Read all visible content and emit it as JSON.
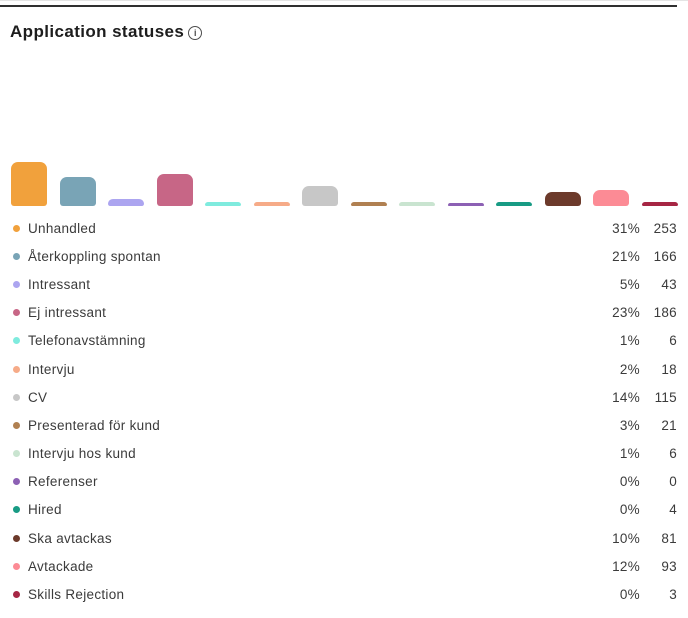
{
  "header": {
    "title": "Application statuses",
    "info_icon_glyph": "i"
  },
  "legend": {
    "rows": [
      {
        "label": "Unhandled",
        "percent": "31%",
        "count": "253",
        "color": "#F1A13C"
      },
      {
        "label": "Återkoppling spontan",
        "percent": "21%",
        "count": "166",
        "color": "#79A4B6"
      },
      {
        "label": "Intressant",
        "percent": "5%",
        "count": "43",
        "color": "#ACA5F0"
      },
      {
        "label": "Ej intressant",
        "percent": "23%",
        "count": "186",
        "color": "#C76686"
      },
      {
        "label": "Telefonavstämning",
        "percent": "1%",
        "count": "6",
        "color": "#7FEBDE"
      },
      {
        "label": "Intervju",
        "percent": "2%",
        "count": "18",
        "color": "#F6AB88"
      },
      {
        "label": "CV",
        "percent": "14%",
        "count": "115",
        "color": "#C7C7C7"
      },
      {
        "label": "Presenterad för kund",
        "percent": "3%",
        "count": "21",
        "color": "#B08051"
      },
      {
        "label": "Intervju hos kund",
        "percent": "1%",
        "count": "6",
        "color": "#C9E4D0"
      },
      {
        "label": "Referenser",
        "percent": "0%",
        "count": "0",
        "color": "#8C60B4"
      },
      {
        "label": "Hired",
        "percent": "0%",
        "count": "4",
        "color": "#189B84"
      },
      {
        "label": "Ska avtackas",
        "percent": "10%",
        "count": "81",
        "color": "#6C3A2B"
      },
      {
        "label": "Avtackade",
        "percent": "12%",
        "count": "93",
        "color": "#FC8B95"
      },
      {
        "label": "Skills Rejection",
        "percent": "0%",
        "count": "3",
        "color": "#A62644"
      }
    ]
  },
  "chart_data": {
    "type": "bar",
    "title": "Application statuses",
    "categories": [
      "Unhandled",
      "Återkoppling spontan",
      "Intressant",
      "Ej intressant",
      "Telefonavstämning",
      "Intervju",
      "CV",
      "Presenterad för kund",
      "Intervju hos kund",
      "Referenser",
      "Hired",
      "Ska avtackas",
      "Avtackade",
      "Skills Rejection"
    ],
    "series": [
      {
        "name": "percent_of_total",
        "values": [
          31,
          21,
          5,
          23,
          1,
          2,
          14,
          3,
          1,
          0,
          0,
          10,
          12,
          0
        ]
      },
      {
        "name": "count",
        "values": [
          253,
          166,
          43,
          186,
          6,
          18,
          115,
          21,
          6,
          0,
          4,
          81,
          93,
          3
        ]
      }
    ],
    "colors": [
      "#F1A13C",
      "#79A4B6",
      "#ACA5F0",
      "#C76686",
      "#7FEBDE",
      "#F6AB88",
      "#C7C7C7",
      "#B08051",
      "#C9E4D0",
      "#8C60B4",
      "#189B84",
      "#6C3A2B",
      "#FC8B95",
      "#A62644"
    ],
    "ylim": [
      0,
      253
    ],
    "grid": false,
    "x_axis_labels_visible": false,
    "legend_position": "bottom"
  }
}
